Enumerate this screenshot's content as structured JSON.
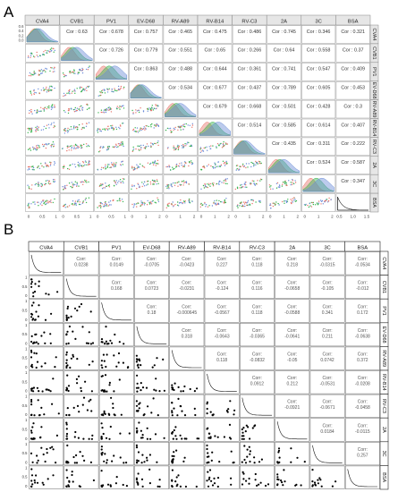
{
  "chart_data": [
    {
      "panel_label": "A",
      "type": "pairs",
      "variables": [
        "CVA4",
        "CVB1",
        "PV1",
        "EV-D68",
        "RV-A89",
        "RV-B14",
        "RV-C3",
        "2A",
        "3C",
        "BSA"
      ],
      "series_colors": [
        "#e8766d",
        "#33b24a",
        "#6b8cd8"
      ],
      "cor_prefix": "Cor : ",
      "correlations": [
        {
          "row": 0,
          "col": 1,
          "text": "0.63"
        },
        {
          "row": 0,
          "col": 2,
          "text": "0.678"
        },
        {
          "row": 0,
          "col": 3,
          "text": "0.757"
        },
        {
          "row": 0,
          "col": 4,
          "text": "0.465"
        },
        {
          "row": 0,
          "col": 5,
          "text": "0.475"
        },
        {
          "row": 0,
          "col": 6,
          "text": "0.486"
        },
        {
          "row": 0,
          "col": 7,
          "text": "0.745"
        },
        {
          "row": 0,
          "col": 8,
          "text": "0.346"
        },
        {
          "row": 0,
          "col": 9,
          "text": "0.321"
        },
        {
          "row": 1,
          "col": 2,
          "text": "0.726"
        },
        {
          "row": 1,
          "col": 3,
          "text": "0.779"
        },
        {
          "row": 1,
          "col": 4,
          "text": "0.551"
        },
        {
          "row": 1,
          "col": 5,
          "text": "0.65"
        },
        {
          "row": 1,
          "col": 6,
          "text": "0.266"
        },
        {
          "row": 1,
          "col": 7,
          "text": "0.64"
        },
        {
          "row": 1,
          "col": 8,
          "text": "0.558"
        },
        {
          "row": 1,
          "col": 9,
          "text": "0.37"
        },
        {
          "row": 2,
          "col": 3,
          "text": "0.863"
        },
        {
          "row": 2,
          "col": 4,
          "text": "0.488"
        },
        {
          "row": 2,
          "col": 5,
          "text": "0.644"
        },
        {
          "row": 2,
          "col": 6,
          "text": "0.361"
        },
        {
          "row": 2,
          "col": 7,
          "text": "0.741"
        },
        {
          "row": 2,
          "col": 8,
          "text": "0.547"
        },
        {
          "row": 2,
          "col": 9,
          "text": "0.409"
        },
        {
          "row": 3,
          "col": 4,
          "text": "0.534"
        },
        {
          "row": 3,
          "col": 5,
          "text": "0.677"
        },
        {
          "row": 3,
          "col": 6,
          "text": "0.437"
        },
        {
          "row": 3,
          "col": 7,
          "text": "0.789"
        },
        {
          "row": 3,
          "col": 8,
          "text": "0.605"
        },
        {
          "row": 3,
          "col": 9,
          "text": "0.453"
        },
        {
          "row": 4,
          "col": 5,
          "text": "0.679"
        },
        {
          "row": 4,
          "col": 6,
          "text": "0.668"
        },
        {
          "row": 4,
          "col": 7,
          "text": "0.501"
        },
        {
          "row": 4,
          "col": 8,
          "text": "0.428"
        },
        {
          "row": 4,
          "col": 9,
          "text": "0.3"
        },
        {
          "row": 5,
          "col": 6,
          "text": "0.514"
        },
        {
          "row": 5,
          "col": 7,
          "text": "0.585"
        },
        {
          "row": 5,
          "col": 8,
          "text": "0.614"
        },
        {
          "row": 5,
          "col": 9,
          "text": "0.407"
        },
        {
          "row": 6,
          "col": 7,
          "text": "0.435"
        },
        {
          "row": 6,
          "col": 8,
          "text": "0.311"
        },
        {
          "row": 6,
          "col": 9,
          "text": "0.222"
        },
        {
          "row": 7,
          "col": 8,
          "text": "0.524"
        },
        {
          "row": 7,
          "col": 9,
          "text": "0.587"
        },
        {
          "row": 8,
          "col": 9,
          "text": "0.347"
        }
      ],
      "diagonal": "density (three overlapping groups)",
      "lower": "scatter plots, points colored by group",
      "bottom_ticks": [
        [
          "0",
          "0.5",
          "1"
        ],
        [
          "0",
          "0.5",
          "1"
        ],
        [
          "0",
          "0.5",
          "1"
        ],
        [
          "0",
          "1",
          "2"
        ],
        [
          "0",
          "1",
          "2"
        ],
        [
          "0",
          "1",
          "2"
        ],
        [
          "0",
          "1",
          "2"
        ],
        [
          "0",
          "1",
          "2"
        ],
        [
          "0",
          "1",
          "2"
        ],
        [
          "0.5",
          "1.0",
          "1.5"
        ]
      ],
      "left_ticks": [
        "0.6",
        "0.4",
        "0.2",
        "0.0"
      ]
    },
    {
      "panel_label": "B",
      "type": "pairs",
      "variables": [
        "CVA4",
        "CVB1",
        "PV1",
        "EV-D68",
        "RV-A89",
        "RV-B14",
        "RV-C3",
        "2A",
        "3C",
        "BSA"
      ],
      "series_colors": [
        "#000000"
      ],
      "cor_label": "Corr:",
      "correlations": [
        {
          "row": 0,
          "col": 1,
          "text": "0.0238"
        },
        {
          "row": 0,
          "col": 2,
          "text": "0.0149"
        },
        {
          "row": 0,
          "col": 3,
          "text": "-0.0705"
        },
        {
          "row": 0,
          "col": 4,
          "text": "-0.0423"
        },
        {
          "row": 0,
          "col": 5,
          "text": "0.227"
        },
        {
          "row": 0,
          "col": 6,
          "text": "0.118"
        },
        {
          "row": 0,
          "col": 7,
          "text": "0.218"
        },
        {
          "row": 0,
          "col": 8,
          "text": "-0.0315"
        },
        {
          "row": 0,
          "col": 9,
          "text": "-0.0534"
        },
        {
          "row": 1,
          "col": 2,
          "text": "0.168"
        },
        {
          "row": 1,
          "col": 3,
          "text": "0.0723"
        },
        {
          "row": 1,
          "col": 4,
          "text": "-0.0231"
        },
        {
          "row": 1,
          "col": 5,
          "text": "-0.124"
        },
        {
          "row": 1,
          "col": 6,
          "text": "0.116"
        },
        {
          "row": 1,
          "col": 7,
          "text": "-0.0658"
        },
        {
          "row": 1,
          "col": 8,
          "text": "-0.105"
        },
        {
          "row": 1,
          "col": 9,
          "text": "-0.012"
        },
        {
          "row": 2,
          "col": 3,
          "text": "0.18"
        },
        {
          "row": 2,
          "col": 4,
          "text": "-0.000645"
        },
        {
          "row": 2,
          "col": 5,
          "text": "-0.0567"
        },
        {
          "row": 2,
          "col": 6,
          "text": "0.118"
        },
        {
          "row": 2,
          "col": 7,
          "text": "-0.0588"
        },
        {
          "row": 2,
          "col": 8,
          "text": "0.341"
        },
        {
          "row": 2,
          "col": 9,
          "text": "0.172"
        },
        {
          "row": 3,
          "col": 4,
          "text": "0.318"
        },
        {
          "row": 3,
          "col": 5,
          "text": "-0.0643"
        },
        {
          "row": 3,
          "col": 6,
          "text": "-0.0365"
        },
        {
          "row": 3,
          "col": 7,
          "text": "-0.0641"
        },
        {
          "row": 3,
          "col": 8,
          "text": "0.211"
        },
        {
          "row": 3,
          "col": 9,
          "text": "-0.0638"
        },
        {
          "row": 4,
          "col": 5,
          "text": "0.118"
        },
        {
          "row": 4,
          "col": 6,
          "text": "-0.0832"
        },
        {
          "row": 4,
          "col": 7,
          "text": "-0.05"
        },
        {
          "row": 4,
          "col": 8,
          "text": "0.0742"
        },
        {
          "row": 4,
          "col": 9,
          "text": "0.372"
        },
        {
          "row": 5,
          "col": 6,
          "text": "0.0912"
        },
        {
          "row": 5,
          "col": 7,
          "text": "0.212"
        },
        {
          "row": 5,
          "col": 8,
          "text": "-0.0531"
        },
        {
          "row": 5,
          "col": 9,
          "text": "-0.0208"
        },
        {
          "row": 6,
          "col": 7,
          "text": "-0.0921"
        },
        {
          "row": 6,
          "col": 8,
          "text": "-0.0671"
        },
        {
          "row": 6,
          "col": 9,
          "text": "-0.0458"
        },
        {
          "row": 7,
          "col": 8,
          "text": "0.0184"
        },
        {
          "row": 7,
          "col": 9,
          "text": "-0.0115"
        },
        {
          "row": 8,
          "col": 9,
          "text": "0.257"
        }
      ],
      "diagonal": "density (single decaying curve)",
      "lower": "scatter plots, black points",
      "bottom_ticks": [
        [
          "0",
          "0.5",
          "1",
          "1.5",
          "2"
        ]
      ],
      "left_ticks": [
        "1",
        "0.5",
        "0"
      ]
    }
  ]
}
